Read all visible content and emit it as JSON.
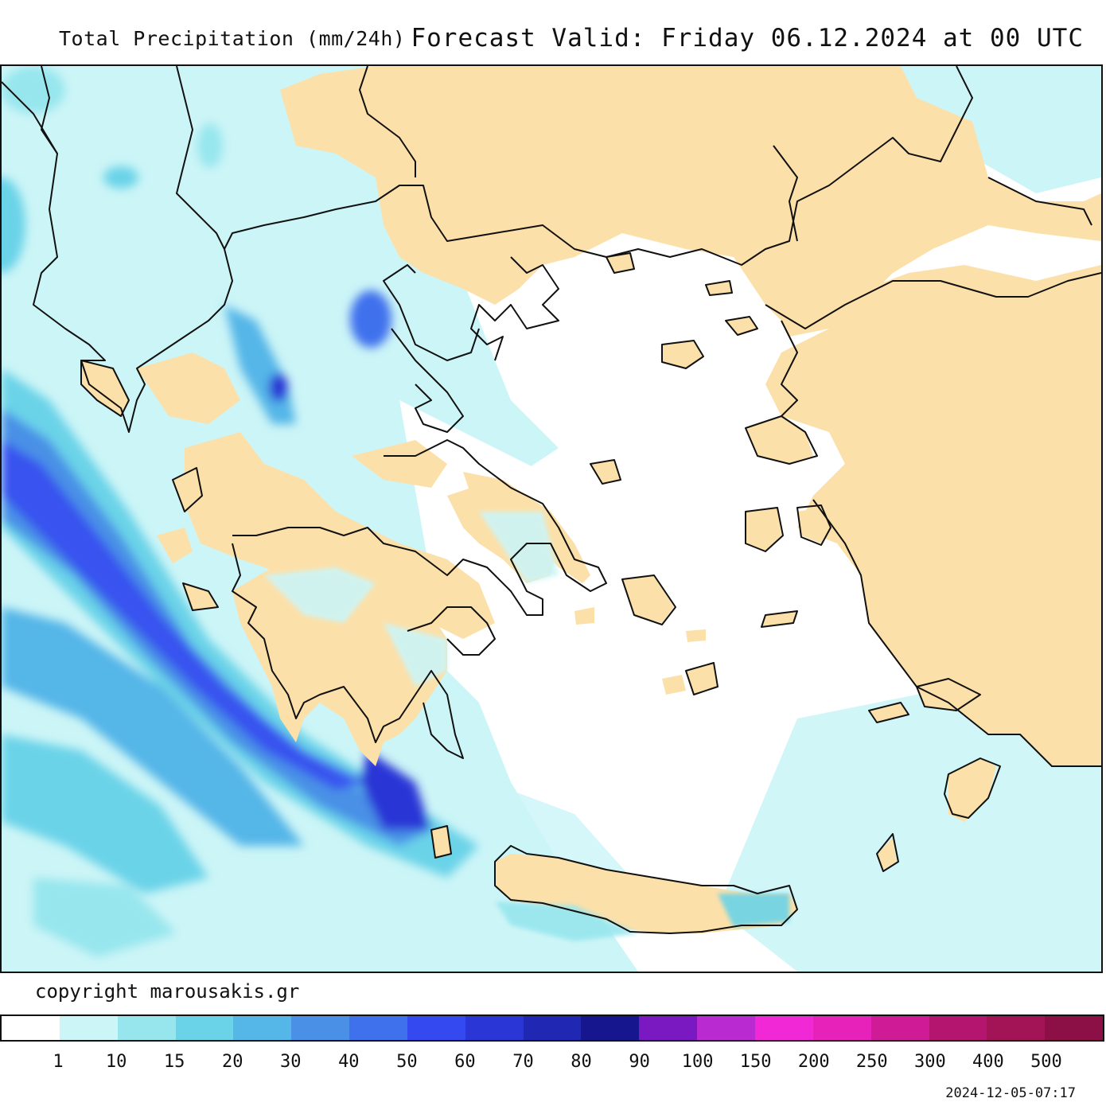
{
  "header": {
    "title": "Total Precipitation (mm/24h)",
    "valid": "Forecast Valid:  Friday 06.12.2024 at 00 UTC"
  },
  "footer": {
    "copyright": "copyright marousakis.gr",
    "timestamp": "2024-12-05-07:17"
  },
  "legend": {
    "colors": [
      "#ffffff",
      "#ccf5f7",
      "#97e6ee",
      "#6bd3e8",
      "#55b6e8",
      "#4a90e6",
      "#3f71ed",
      "#3449f0",
      "#2a36d6",
      "#1f27b3",
      "#16168f",
      "#7a18c2",
      "#b92ad1",
      "#f028d6",
      "#e622ba",
      "#cf1b95",
      "#b4156e",
      "#a31457",
      "#8c0f45"
    ],
    "ticks": [
      "1",
      "10",
      "15",
      "20",
      "30",
      "40",
      "50",
      "60",
      "70",
      "80",
      "90",
      "100",
      "150",
      "200",
      "250",
      "300",
      "400",
      "500"
    ]
  },
  "map": {
    "land_color": "#fce0a9",
    "sea_color": "#ffffff"
  }
}
